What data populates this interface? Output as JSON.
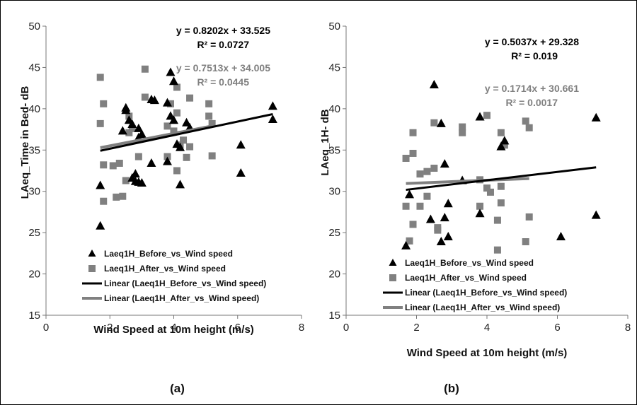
{
  "chart_data": [
    {
      "type": "scatter",
      "panel_label": "(a)",
      "xlabel": "Wind Speed at 10m height (m/s)",
      "ylabel": "LAeq_Time in Bed- dB",
      "xlim": [
        0,
        8
      ],
      "ylim": [
        15,
        50
      ],
      "xticks": [
        "0",
        "2",
        "4",
        "6",
        "8"
      ],
      "yticks": [
        "15",
        "20",
        "25",
        "30",
        "35",
        "40",
        "45",
        "50"
      ],
      "grid": false,
      "legend_position": "bottom-left",
      "colors": {
        "before": "#000000",
        "after": "#808080"
      },
      "series": [
        {
          "name": "Laeq1H_Before_vs_Wind speed",
          "marker": "triangle",
          "points": [
            [
              1.7,
              30.7
            ],
            [
              1.7,
              25.8
            ],
            [
              2.4,
              37.3
            ],
            [
              2.5,
              39.8
            ],
            [
              2.5,
              40.1
            ],
            [
              2.6,
              38.6
            ],
            [
              2.7,
              38.1
            ],
            [
              2.7,
              31.6
            ],
            [
              2.8,
              32.1
            ],
            [
              2.8,
              31.2
            ],
            [
              2.9,
              37.6
            ],
            [
              2.9,
              36.5
            ],
            [
              2.9,
              31.1
            ],
            [
              3.0,
              36.9
            ],
            [
              3.0,
              31.0
            ],
            [
              3.3,
              33.4
            ],
            [
              3.3,
              41.1
            ],
            [
              3.4,
              41.0
            ],
            [
              3.8,
              33.6
            ],
            [
              3.8,
              40.7
            ],
            [
              3.9,
              44.4
            ],
            [
              3.9,
              39.1
            ],
            [
              4.0,
              43.3
            ],
            [
              4.0,
              38.6
            ],
            [
              4.1,
              35.7
            ],
            [
              4.2,
              35.3
            ],
            [
              4.2,
              30.8
            ],
            [
              4.4,
              38.3
            ],
            [
              4.5,
              37.7
            ],
            [
              6.1,
              35.6
            ],
            [
              6.1,
              32.2
            ],
            [
              7.1,
              40.3
            ],
            [
              7.1,
              38.7
            ]
          ]
        },
        {
          "name": "Laeq1H_After_vs_Wind speed",
          "marker": "square",
          "points": [
            [
              1.7,
              43.8
            ],
            [
              1.7,
              38.2
            ],
            [
              1.8,
              40.6
            ],
            [
              1.8,
              33.2
            ],
            [
              1.8,
              28.8
            ],
            [
              2.1,
              33.1
            ],
            [
              2.2,
              29.3
            ],
            [
              2.3,
              33.4
            ],
            [
              2.4,
              29.4
            ],
            [
              2.5,
              31.3
            ],
            [
              2.6,
              37.1
            ],
            [
              2.6,
              39.1
            ],
            [
              2.7,
              37.6
            ],
            [
              2.9,
              34.2
            ],
            [
              3.1,
              44.8
            ],
            [
              3.1,
              41.4
            ],
            [
              3.8,
              34.2
            ],
            [
              3.8,
              37.9
            ],
            [
              3.9,
              40.6
            ],
            [
              4.0,
              37.3
            ],
            [
              4.1,
              39.5
            ],
            [
              4.1,
              42.6
            ],
            [
              4.1,
              32.5
            ],
            [
              4.2,
              35.6
            ],
            [
              4.3,
              36.2
            ],
            [
              4.4,
              34.1
            ],
            [
              4.5,
              41.3
            ],
            [
              4.5,
              35.4
            ],
            [
              5.1,
              40.6
            ],
            [
              5.1,
              39.1
            ],
            [
              5.2,
              38.2
            ],
            [
              5.2,
              34.3
            ]
          ]
        },
        {
          "name": "Linear (Laeq1H_Before_vs_Wind speed)",
          "marker": "line",
          "slope": 0.8202,
          "intercept": 33.525,
          "x_range": [
            1.7,
            7.1
          ],
          "equation": "y = 0.8202x + 33.525",
          "r2": "R² = 0.0727"
        },
        {
          "name": "Linear (Laeq1H_After_vs_Wind speed)",
          "marker": "line",
          "slope": 0.7513,
          "intercept": 34.005,
          "x_range": [
            1.7,
            5.2
          ],
          "equation": "y = 0.7513x + 34.005",
          "r2": "R² = 0.0445"
        }
      ]
    },
    {
      "type": "scatter",
      "panel_label": "(b)",
      "xlabel": "Wind Speed at 10m height (m/s)",
      "ylabel": "LAeq_1H- dB",
      "xlim": [
        0,
        8
      ],
      "ylim": [
        15,
        50
      ],
      "xticks": [
        "0",
        "2",
        "4",
        "6",
        "8"
      ],
      "yticks": [
        "15",
        "20",
        "25",
        "30",
        "35",
        "40",
        "45",
        "50"
      ],
      "grid": false,
      "legend_position": "bottom-left",
      "colors": {
        "before": "#000000",
        "after": "#808080"
      },
      "series": [
        {
          "name": "Laeq1H_Before_vs_Wind speed",
          "marker": "triangle",
          "points": [
            [
              1.7,
              23.4
            ],
            [
              1.8,
              29.6
            ],
            [
              2.4,
              26.6
            ],
            [
              2.5,
              42.9
            ],
            [
              2.7,
              38.2
            ],
            [
              2.7,
              23.9
            ],
            [
              2.8,
              33.3
            ],
            [
              2.8,
              26.8
            ],
            [
              2.9,
              28.5
            ],
            [
              2.9,
              24.5
            ],
            [
              3.3,
              31.3
            ],
            [
              3.8,
              39.0
            ],
            [
              3.8,
              27.3
            ],
            [
              4.4,
              35.4
            ],
            [
              4.5,
              36.1
            ],
            [
              6.1,
              24.5
            ],
            [
              7.1,
              38.9
            ],
            [
              7.1,
              27.1
            ]
          ]
        },
        {
          "name": "Laeq1H_After_vs_Wind speed",
          "marker": "square",
          "points": [
            [
              1.7,
              34.0
            ],
            [
              1.7,
              28.2
            ],
            [
              1.8,
              24.0
            ],
            [
              1.9,
              37.1
            ],
            [
              1.9,
              34.6
            ],
            [
              1.9,
              26.0
            ],
            [
              2.1,
              32.1
            ],
            [
              2.1,
              28.2
            ],
            [
              2.3,
              32.4
            ],
            [
              2.3,
              29.4
            ],
            [
              2.5,
              38.3
            ],
            [
              2.5,
              32.8
            ],
            [
              2.6,
              25.3
            ],
            [
              2.6,
              25.6
            ],
            [
              3.3,
              37.8
            ],
            [
              3.3,
              37.1
            ],
            [
              3.8,
              28.2
            ],
            [
              3.8,
              31.4
            ],
            [
              4.0,
              39.2
            ],
            [
              4.0,
              30.4
            ],
            [
              4.1,
              29.9
            ],
            [
              4.3,
              26.5
            ],
            [
              4.3,
              22.9
            ],
            [
              4.4,
              37.1
            ],
            [
              4.4,
              30.6
            ],
            [
              4.4,
              28.6
            ],
            [
              4.5,
              35.6
            ],
            [
              5.1,
              38.5
            ],
            [
              5.1,
              23.9
            ],
            [
              5.2,
              37.7
            ],
            [
              5.2,
              26.9
            ]
          ]
        },
        {
          "name": "Linear (Laeq1H_Before_vs_Wind speed)",
          "marker": "line",
          "slope": 0.5037,
          "intercept": 29.328,
          "x_range": [
            1.7,
            7.1
          ],
          "equation": "y = 0.5037x + 29.328",
          "r2": "R² = 0.019"
        },
        {
          "name": "Linear (Laeq1H_After_vs_Wind speed)",
          "marker": "line",
          "slope": 0.1714,
          "intercept": 30.661,
          "x_range": [
            1.7,
            5.2
          ],
          "equation": "y = 0.1714x + 30.661",
          "r2": "R² = 0.0017"
        }
      ]
    }
  ]
}
